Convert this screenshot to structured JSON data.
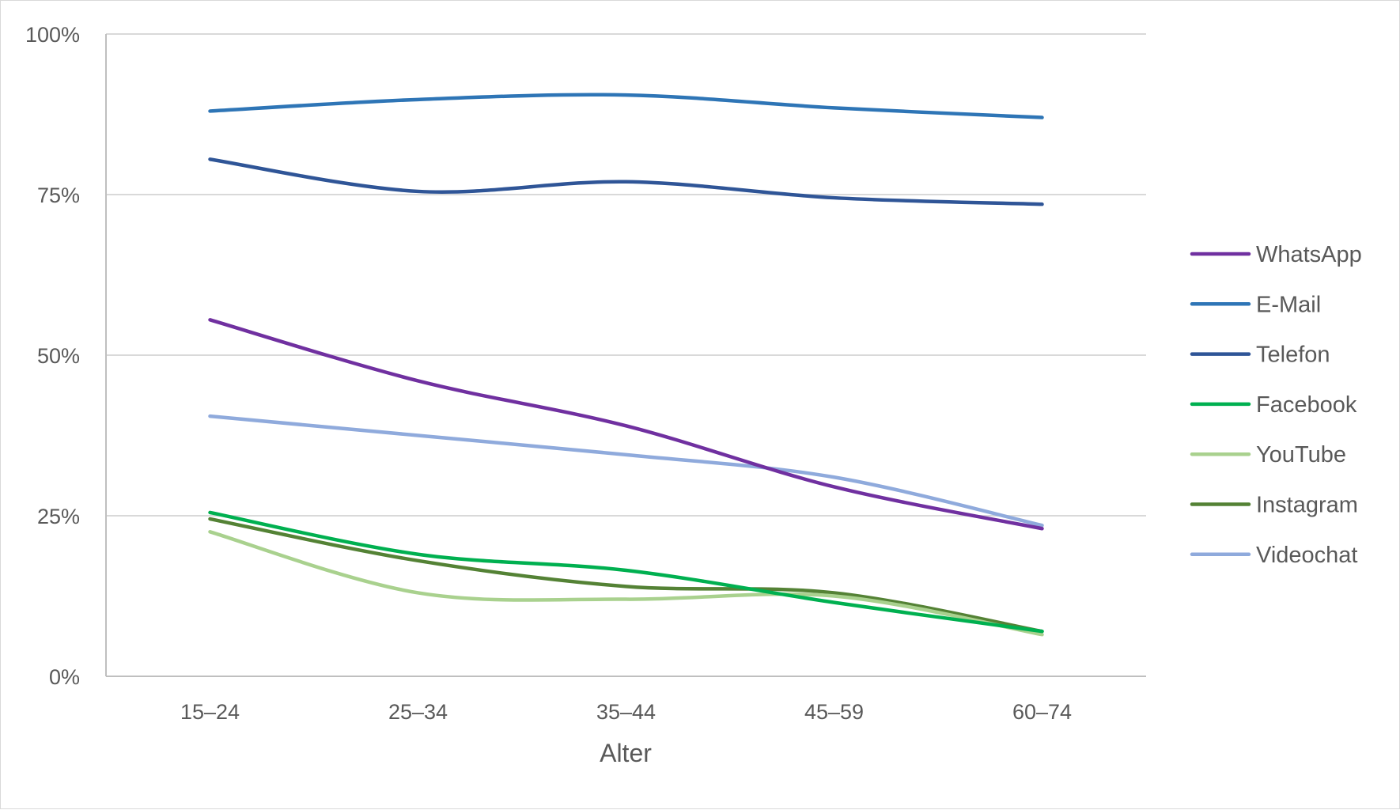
{
  "chart_data": {
    "type": "line",
    "title": "",
    "xlabel": "Alter",
    "ylabel": "",
    "categories": [
      "15–24",
      "25–34",
      "35–44",
      "45–59",
      "60–74"
    ],
    "y_ticks": [
      "0%",
      "25%",
      "50%",
      "75%",
      "100%"
    ],
    "ylim": [
      0,
      100
    ],
    "grid": true,
    "legend_position": "right",
    "series": [
      {
        "name": "WhatsApp",
        "color": "#7030a0",
        "values": [
          55.5,
          46.0,
          39.0,
          29.5,
          23.0
        ]
      },
      {
        "name": "E-Mail",
        "color": "#2e75b6",
        "values": [
          88.0,
          89.8,
          90.5,
          88.5,
          87.0
        ]
      },
      {
        "name": "Telefon",
        "color": "#2f5597",
        "values": [
          80.5,
          75.5,
          77.0,
          74.5,
          73.5
        ]
      },
      {
        "name": "Facebook",
        "color": "#00b050",
        "values": [
          25.5,
          19.0,
          16.5,
          11.5,
          7.0
        ]
      },
      {
        "name": "YouTube",
        "color": "#a9d18e",
        "values": [
          22.5,
          13.0,
          12.0,
          12.5,
          6.5
        ]
      },
      {
        "name": "Instagram",
        "color": "#548235",
        "values": [
          24.5,
          18.0,
          14.0,
          13.0,
          7.0
        ]
      },
      {
        "name": "Videochat",
        "color": "#8faadc",
        "values": [
          40.5,
          37.5,
          34.5,
          31.0,
          23.5
        ]
      }
    ]
  }
}
